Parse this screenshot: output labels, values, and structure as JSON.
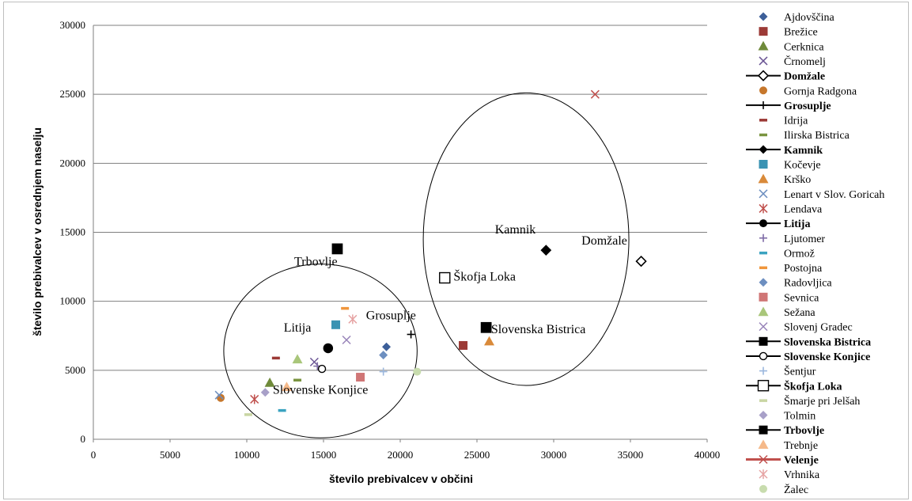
{
  "chart_data": {
    "type": "scatter",
    "xlabel": "število prebivalcev v občini",
    "ylabel": "število prebivalcev v osrednjem naselju",
    "xlim": [
      0,
      40000
    ],
    "ylim": [
      0,
      30000
    ],
    "x_ticks": [
      "0",
      "5000",
      "10000",
      "15000",
      "20000",
      "25000",
      "30000",
      "35000",
      "40000"
    ],
    "y_ticks": [
      "0",
      "5000",
      "10000",
      "15000",
      "20000",
      "25000",
      "30000"
    ],
    "grid": "horizontal",
    "legend_position": "right",
    "series": [
      {
        "name": "Ajdovščina",
        "marker": "diamond",
        "color": "#3d5f99",
        "bold": false,
        "x": 19100,
        "y": 6700
      },
      {
        "name": "Brežice",
        "marker": "square",
        "color": "#9c3a36",
        "bold": false,
        "x": 24100,
        "y": 6800
      },
      {
        "name": "Cerknica",
        "marker": "triangle",
        "color": "#6f8a3a",
        "bold": false,
        "x": 11500,
        "y": 4100
      },
      {
        "name": "Črnomelj",
        "marker": "x",
        "color": "#6a5494",
        "bold": false,
        "x": 14400,
        "y": 5600
      },
      {
        "name": "Domžale",
        "marker": "diamond-open",
        "color": "#000000",
        "bold": true,
        "x": 35700,
        "y": 12900
      },
      {
        "name": "Gornja Radgona",
        "marker": "circle",
        "color": "#c6772c",
        "bold": false,
        "x": 8300,
        "y": 3000
      },
      {
        "name": "Grosuplje",
        "marker": "plus",
        "color": "#000000",
        "bold": true,
        "x": 20700,
        "y": 7600
      },
      {
        "name": "Idrija",
        "marker": "dash",
        "color": "#9c3a36",
        "bold": false,
        "x": 11900,
        "y": 5900
      },
      {
        "name": "Ilirska Bistrica",
        "marker": "dash",
        "color": "#7a9440",
        "bold": false,
        "x": 13300,
        "y": 4300
      },
      {
        "name": "Kamnik",
        "marker": "diamond",
        "color": "#000000",
        "bold": true,
        "x": 29500,
        "y": 13700
      },
      {
        "name": "Kočevje",
        "marker": "square",
        "color": "#3a93b3",
        "bold": false,
        "x": 15800,
        "y": 8300
      },
      {
        "name": "Krško",
        "marker": "triangle",
        "color": "#d98a3a",
        "bold": false,
        "x": 25800,
        "y": 7100
      },
      {
        "name": "Lenart v Slov. Goricah",
        "marker": "x",
        "color": "#6d8fc0",
        "bold": false,
        "x": 8200,
        "y": 3200
      },
      {
        "name": "Lendava",
        "marker": "asterisk",
        "color": "#c0504d",
        "bold": false,
        "x": 10500,
        "y": 2900
      },
      {
        "name": "Litija",
        "marker": "circle",
        "color": "#000000",
        "bold": true,
        "x": 15300,
        "y": 6600
      },
      {
        "name": "Ljutomer",
        "marker": "plus",
        "color": "#7e6ba6",
        "bold": false,
        "x": 14600,
        "y": 5300
      },
      {
        "name": "Ormož",
        "marker": "dash",
        "color": "#3ba3c0",
        "bold": false,
        "x": 12300,
        "y": 2100
      },
      {
        "name": "Postojna",
        "marker": "dash",
        "color": "#f0963c",
        "bold": false,
        "x": 16400,
        "y": 9500
      },
      {
        "name": "Radovljica",
        "marker": "diamond",
        "color": "#6d8fc0",
        "bold": false,
        "x": 18900,
        "y": 6100
      },
      {
        "name": "Sevnica",
        "marker": "square",
        "color": "#d07676",
        "bold": false,
        "x": 17400,
        "y": 4500
      },
      {
        "name": "Sežana",
        "marker": "triangle",
        "color": "#a9c67a",
        "bold": false,
        "x": 13300,
        "y": 5800
      },
      {
        "name": "Slovenj Gradec",
        "marker": "x",
        "color": "#9884b9",
        "bold": false,
        "x": 16500,
        "y": 7200
      },
      {
        "name": "Slovenska Bistrica",
        "marker": "square",
        "color": "#000000",
        "bold": true,
        "x": 25600,
        "y": 8100
      },
      {
        "name": "Slovenske Konjice",
        "marker": "circle-open",
        "color": "#000000",
        "bold": true,
        "x": 14900,
        "y": 5100
      },
      {
        "name": "Šentjur",
        "marker": "plus",
        "color": "#9bb7dd",
        "bold": false,
        "x": 18900,
        "y": 4900
      },
      {
        "name": "Škofja Loka",
        "marker": "square-open",
        "color": "#000000",
        "bold": true,
        "x": 22900,
        "y": 11700
      },
      {
        "name": "Šmarje pri Jelšah",
        "marker": "dash",
        "color": "#c9d6a3",
        "bold": false,
        "x": 10100,
        "y": 1800
      },
      {
        "name": "Tolmin",
        "marker": "diamond",
        "color": "#a8a0c8",
        "bold": false,
        "x": 11200,
        "y": 3400
      },
      {
        "name": "Trbovlje",
        "marker": "square",
        "color": "#000000",
        "bold": true,
        "x": 15900,
        "y": 13800
      },
      {
        "name": "Trebnje",
        "marker": "triangle",
        "color": "#f5b98a",
        "bold": false,
        "x": 12600,
        "y": 3800
      },
      {
        "name": "Velenje",
        "marker": "x-line",
        "color": "#c0504d",
        "bold": true,
        "x": 32700,
        "y": 25000
      },
      {
        "name": "Vrhnika",
        "marker": "asterisk",
        "color": "#e6a3a3",
        "bold": false,
        "x": 16900,
        "y": 8700
      },
      {
        "name": "Žalec",
        "marker": "circle",
        "color": "#c8dcae",
        "bold": false,
        "x": 21100,
        "y": 4900
      }
    ],
    "annotations": [
      {
        "text": "Trbovlje",
        "x": 14500,
        "y": 12600
      },
      {
        "text": "Kamnik",
        "x": 27500,
        "y": 14900
      },
      {
        "text": "Domžale",
        "x": 33300,
        "y": 14100
      },
      {
        "text": "Škofja Loka",
        "x": 25500,
        "y": 11500
      },
      {
        "text": "Grosuplje",
        "x": 19400,
        "y": 8700
      },
      {
        "text": "Litija",
        "x": 13300,
        "y": 7800
      },
      {
        "text": "Slovenska Bistrica",
        "x": 29000,
        "y": 7700
      },
      {
        "text": "Slovenske Konjice",
        "x": 14800,
        "y": 3300
      }
    ],
    "clusters": [
      {
        "cx": 14800,
        "cy": 6400,
        "rx": 6300,
        "ry": 6300
      },
      {
        "cx": 28200,
        "cy": 14500,
        "rx": 6700,
        "ry": 10600
      }
    ]
  }
}
